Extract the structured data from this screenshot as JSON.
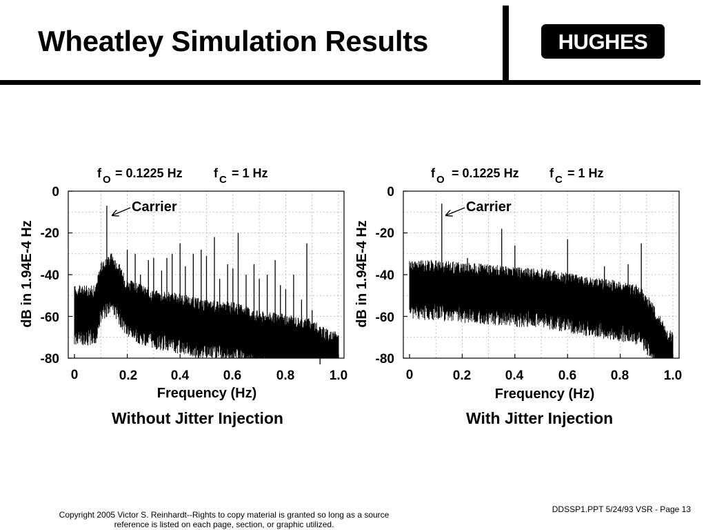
{
  "slide": {
    "title": "Wheatley Simulation Results",
    "logo": "HUGHES",
    "footer_copyright_line1": "Copyright 2005 Victor S. Reinhardt--Rights to copy material is granted so long as a source",
    "footer_copyright_line2": "reference is listed on each page, section, or graphic utilized.",
    "footer_page": "DDSSP1.PPT 5/24/93 VSR - Page 13"
  },
  "chart_data": [
    {
      "type": "line",
      "caption": "Without Jitter Injection",
      "header_fo_label": "f",
      "header_fo_sub": "O",
      "header_fo_value": "= 0.1225 Hz",
      "header_fc_label": "f",
      "header_fc_sub": "C",
      "header_fc_value": "= 1 Hz",
      "xlabel": "Frequency (Hz)",
      "ylabel": "dB in 1.94E-4 Hz",
      "xlim": [
        0,
        1.0
      ],
      "ylim": [
        -80,
        0
      ],
      "xticks": [
        "0",
        "0.2",
        "0.4",
        "0.6",
        "0.8",
        "1.0"
      ],
      "yticks": [
        "0",
        "-20",
        "-40",
        "-60",
        "-80"
      ],
      "grid": true,
      "annotation": {
        "text": "Carrier",
        "x": 0.1225,
        "y": -7
      },
      "series": [
        {
          "floor": [
            [
              0,
              -58
            ],
            [
              0.08,
              -58
            ],
            [
              0.1,
              -47
            ],
            [
              0.14,
              -42
            ],
            [
              0.2,
              -55
            ],
            [
              0.3,
              -60
            ],
            [
              0.4,
              -62
            ],
            [
              0.5,
              -65
            ],
            [
              0.6,
              -66
            ],
            [
              0.7,
              -70
            ],
            [
              0.8,
              -72
            ],
            [
              0.9,
              -74
            ],
            [
              0.93,
              -77
            ],
            [
              0.97,
              -80
            ],
            [
              1.0,
              -80
            ]
          ],
          "spikes": [
            [
              0.1225,
              -7
            ],
            [
              0.09,
              -40
            ],
            [
              0.14,
              -30
            ],
            [
              0.17,
              -35
            ],
            [
              0.2,
              -28
            ],
            [
              0.23,
              -30
            ],
            [
              0.25,
              -40
            ],
            [
              0.28,
              -33
            ],
            [
              0.3,
              -32
            ],
            [
              0.33,
              -38
            ],
            [
              0.35,
              -32
            ],
            [
              0.37,
              -30
            ],
            [
              0.4,
              -25
            ],
            [
              0.42,
              -36
            ],
            [
              0.45,
              -30
            ],
            [
              0.48,
              -28
            ],
            [
              0.5,
              -31
            ],
            [
              0.53,
              -22
            ],
            [
              0.55,
              -42
            ],
            [
              0.58,
              -35
            ],
            [
              0.6,
              -37
            ],
            [
              0.62,
              -20
            ],
            [
              0.65,
              -40
            ],
            [
              0.68,
              -35
            ],
            [
              0.7,
              -42
            ],
            [
              0.73,
              -40
            ],
            [
              0.76,
              -33
            ],
            [
              0.78,
              -45
            ],
            [
              0.8,
              -47
            ],
            [
              0.83,
              -40
            ],
            [
              0.86,
              -52
            ],
            [
              0.88,
              -25
            ],
            [
              0.9,
              -57
            ],
            [
              0.93,
              -65
            ]
          ]
        }
      ]
    },
    {
      "type": "line",
      "caption": "With Jitter Injection",
      "header_fo_label": "f",
      "header_fo_sub": "O",
      "header_fo_value": "= 0.1225 Hz",
      "header_fc_label": "f",
      "header_fc_sub": "C",
      "header_fc_value": "= 1 Hz",
      "xlabel": "Frequency (Hz)",
      "ylabel": "dB in 1.94E-4 Hz",
      "xlim": [
        0,
        1.0
      ],
      "ylim": [
        -80,
        0
      ],
      "xticks": [
        "0",
        "0.2",
        "0.4",
        "0.6",
        "0.8",
        "1.0"
      ],
      "yticks": [
        "0",
        "-20",
        "-40",
        "-60",
        "-80"
      ],
      "grid": true,
      "annotation": {
        "text": "Carrier",
        "x": 0.1225,
        "y": -6
      },
      "series": [
        {
          "floor": [
            [
              0,
              -46
            ],
            [
              0.1,
              -46
            ],
            [
              0.2,
              -47
            ],
            [
              0.3,
              -48
            ],
            [
              0.4,
              -49
            ],
            [
              0.5,
              -50
            ],
            [
              0.6,
              -52
            ],
            [
              0.7,
              -54
            ],
            [
              0.8,
              -56
            ],
            [
              0.87,
              -58
            ],
            [
              0.9,
              -62
            ],
            [
              0.95,
              -72
            ],
            [
              0.98,
              -79
            ],
            [
              1.0,
              -80
            ]
          ],
          "spikes": [
            [
              0.1225,
              -6
            ],
            [
              0.22,
              -32
            ],
            [
              0.27,
              -35
            ],
            [
              0.35,
              -18
            ],
            [
              0.4,
              -26
            ],
            [
              0.46,
              -40
            ],
            [
              0.6,
              -23
            ],
            [
              0.63,
              -40
            ],
            [
              0.74,
              -36
            ],
            [
              0.83,
              -35
            ],
            [
              0.88,
              -25
            ]
          ]
        }
      ]
    }
  ]
}
